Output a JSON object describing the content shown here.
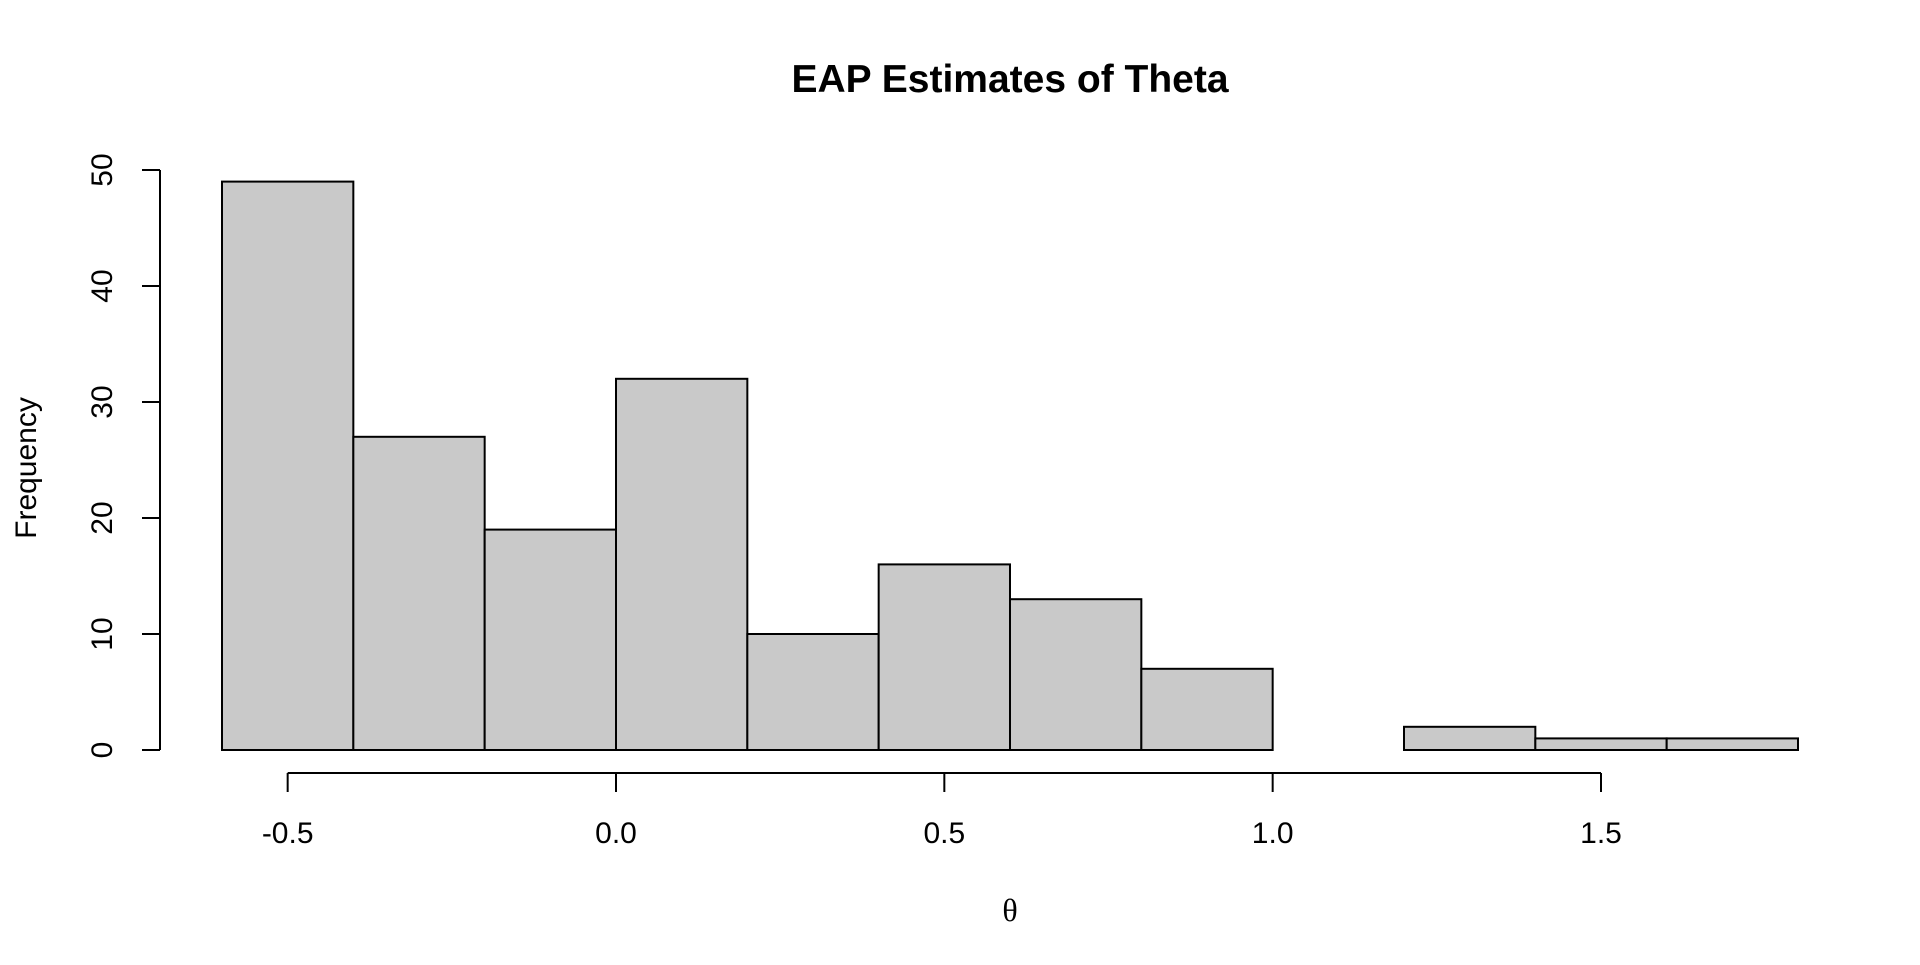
{
  "chart_data": {
    "type": "bar",
    "title": "EAP Estimates of Theta",
    "xlabel": "θ",
    "ylabel": "Frequency",
    "bins": [
      {
        "from": -0.6,
        "to": -0.4,
        "count": 49
      },
      {
        "from": -0.4,
        "to": -0.2,
        "count": 27
      },
      {
        "from": -0.2,
        "to": 0.0,
        "count": 19
      },
      {
        "from": 0.0,
        "to": 0.2,
        "count": 32
      },
      {
        "from": 0.2,
        "to": 0.4,
        "count": 10
      },
      {
        "from": 0.4,
        "to": 0.6,
        "count": 16
      },
      {
        "from": 0.6,
        "to": 0.8,
        "count": 13
      },
      {
        "from": 0.8,
        "to": 1.0,
        "count": 7
      },
      {
        "from": 1.0,
        "to": 1.2,
        "count": 0
      },
      {
        "from": 1.2,
        "to": 1.4,
        "count": 2
      },
      {
        "from": 1.4,
        "to": 1.6,
        "count": 1
      },
      {
        "from": 1.6,
        "to": 1.8,
        "count": 1
      }
    ],
    "x_ticks": [
      -0.5,
      0.0,
      0.5,
      1.0,
      1.5
    ],
    "x_tick_labels": [
      "-0.5",
      "0.0",
      "0.5",
      "1.0",
      "1.5"
    ],
    "y_ticks": [
      0,
      10,
      20,
      30,
      40,
      50
    ],
    "y_tick_labels": [
      "0",
      "10",
      "20",
      "30",
      "40",
      "50"
    ],
    "xlim": [
      -0.6,
      1.8
    ],
    "ylim": [
      0,
      50
    ],
    "grid": false,
    "legend": "none",
    "colors": {
      "bar_fill": "#c9c9c9",
      "bar_stroke": "#000000",
      "axis": "#000000",
      "background": "#ffffff"
    }
  }
}
